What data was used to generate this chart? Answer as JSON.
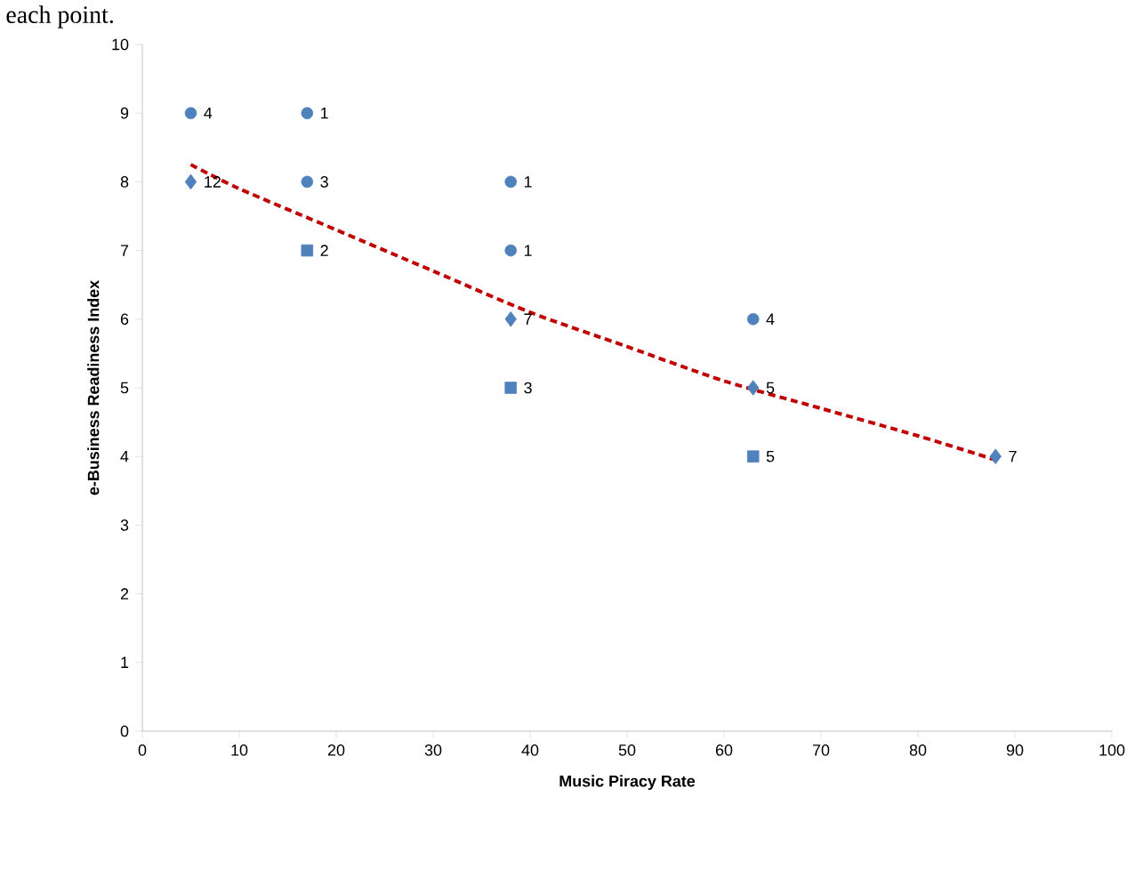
{
  "chart_data": {
    "type": "scatter",
    "xlabel": "Music Piracy Rate",
    "ylabel": "e-Business Readiness Index",
    "xlim": [
      0,
      100
    ],
    "xticks": [
      0,
      10,
      20,
      30,
      40,
      50,
      60,
      70,
      80,
      90,
      100
    ],
    "ylim": [
      0,
      10
    ],
    "yticks": [
      0,
      1,
      2,
      3,
      4,
      5,
      6,
      7,
      8,
      9,
      10
    ],
    "series": [
      {
        "marker": "circle",
        "color": "#4f81bd",
        "x": [
          5,
          17,
          17,
          38,
          38,
          63
        ],
        "values": [
          9,
          9,
          8,
          8,
          7,
          6
        ]
      },
      {
        "marker": "square",
        "color": "#4f81bd",
        "x": [
          17,
          38,
          63
        ],
        "values": [
          7,
          5,
          4
        ]
      },
      {
        "marker": "diamond",
        "color": "#4f81bd",
        "x": [
          5,
          38,
          63,
          88
        ],
        "values": [
          8,
          6,
          5,
          4
        ]
      },
      {
        "type": "line",
        "marker": "none",
        "line_style": "dashed",
        "color": "#c00000",
        "x": [
          5,
          10,
          20,
          30,
          40,
          50,
          60,
          70,
          80,
          88
        ],
        "values": [
          8.25,
          7.9,
          7.3,
          6.7,
          6.1,
          5.6,
          5.1,
          4.7,
          4.3,
          3.95
        ]
      }
    ],
    "annotations": [
      "each point.",
      {
        "text": "4",
        "x": 5,
        "y": 9
      },
      {
        "text": "1",
        "x": 17,
        "y": 9
      },
      {
        "text": "3",
        "x": 17,
        "y": 8
      },
      {
        "text": "1",
        "x": 38,
        "y": 8
      },
      {
        "text": "1",
        "x": 38,
        "y": 7
      },
      {
        "text": "4",
        "x": 63,
        "y": 6
      },
      {
        "text": "2",
        "x": 17,
        "y": 7
      },
      {
        "text": "3",
        "x": 38,
        "y": 5
      },
      {
        "text": "5",
        "x": 63,
        "y": 4
      },
      {
        "text": "12",
        "x": 5,
        "y": 8
      },
      {
        "text": "7",
        "x": 38,
        "y": 6
      },
      {
        "text": "5",
        "x": 63,
        "y": 5
      },
      {
        "text": "7",
        "x": 88,
        "y": 4
      }
    ]
  }
}
